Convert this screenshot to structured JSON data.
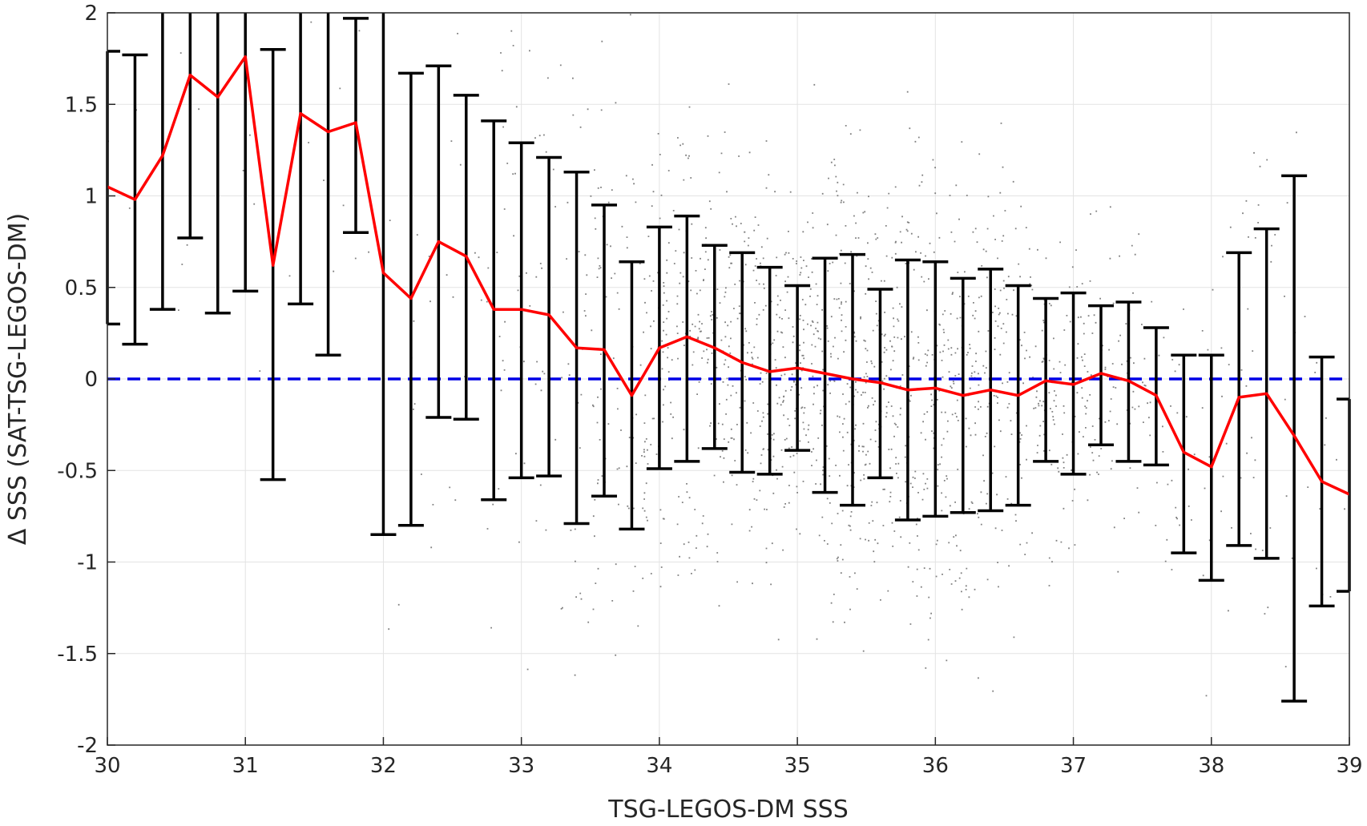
{
  "chart_data": {
    "type": "scatter",
    "title": "",
    "xlabel": "TSG-LEGOS-DM SSS",
    "ylabel": "Δ SSS (SAT-TSG-LEGOS-DM)",
    "xlim": [
      30,
      39
    ],
    "ylim": [
      -2,
      2
    ],
    "xticks": [
      "30",
      "31",
      "32",
      "33",
      "34",
      "35",
      "36",
      "37",
      "38",
      "39"
    ],
    "yticks": [
      "-2",
      "-1.5",
      "-1",
      "-0.5",
      "0",
      "0.5",
      "1",
      "1.5",
      "2"
    ],
    "grid": true,
    "colors": {
      "scatter": "#808080",
      "mean_line": "#ff0000",
      "error_bars": "#000000",
      "zero_line": "#0000e6"
    },
    "reference_line": {
      "y": 0,
      "style": "dashed"
    },
    "series": [
      {
        "kind": "binned_mean_with_errorbars",
        "x": [
          30.0,
          30.2,
          30.4,
          30.6,
          30.8,
          31.0,
          31.2,
          31.4,
          31.6,
          31.8,
          32.0,
          32.2,
          32.4,
          32.6,
          32.8,
          33.0,
          33.2,
          33.4,
          33.6,
          33.8,
          34.0,
          34.2,
          34.4,
          34.6,
          34.8,
          35.0,
          35.2,
          35.4,
          35.6,
          35.8,
          36.0,
          36.2,
          36.4,
          36.6,
          36.8,
          37.0,
          37.2,
          37.4,
          37.6,
          37.8,
          38.0,
          38.2,
          38.4,
          38.6,
          38.8,
          39.0
        ],
        "mean": [
          1.05,
          0.98,
          1.22,
          1.66,
          1.54,
          1.76,
          0.62,
          1.45,
          1.35,
          1.4,
          0.58,
          0.44,
          0.75,
          0.67,
          0.38,
          0.38,
          0.35,
          0.17,
          0.16,
          -0.09,
          0.17,
          0.23,
          0.17,
          0.09,
          0.04,
          0.06,
          0.03,
          0.0,
          -0.02,
          -0.06,
          -0.05,
          -0.09,
          -0.06,
          -0.09,
          -0.01,
          -0.03,
          0.03,
          -0.01,
          -0.09,
          -0.4,
          -0.48,
          -0.1,
          -0.08,
          -0.31,
          -0.56,
          -0.63
        ],
        "lower": [
          0.3,
          0.19,
          0.38,
          0.77,
          0.36,
          0.48,
          -0.55,
          0.41,
          0.13,
          0.8,
          -0.85,
          -0.8,
          -0.21,
          -0.22,
          -0.66,
          -0.54,
          -0.53,
          -0.79,
          -0.64,
          -0.82,
          -0.49,
          -0.45,
          -0.38,
          -0.51,
          -0.52,
          -0.39,
          -0.62,
          -0.69,
          -0.54,
          -0.77,
          -0.75,
          -0.73,
          -0.72,
          -0.69,
          -0.45,
          -0.52,
          -0.36,
          -0.45,
          -0.47,
          -0.95,
          -1.1,
          -0.91,
          -0.98,
          -1.76,
          -1.24,
          -1.16
        ],
        "upper": [
          1.79,
          1.77,
          2.0,
          2.0,
          2.0,
          2.0,
          1.8,
          2.0,
          2.0,
          1.97,
          2.0,
          1.67,
          1.71,
          1.55,
          1.41,
          1.29,
          1.21,
          1.13,
          0.95,
          0.64,
          0.83,
          0.89,
          0.73,
          0.69,
          0.61,
          0.51,
          0.66,
          0.68,
          0.49,
          0.65,
          0.64,
          0.55,
          0.6,
          0.51,
          0.44,
          0.47,
          0.4,
          0.42,
          0.28,
          0.13,
          0.13,
          0.69,
          0.82,
          1.11,
          0.12,
          -0.11
        ]
      }
    ]
  }
}
